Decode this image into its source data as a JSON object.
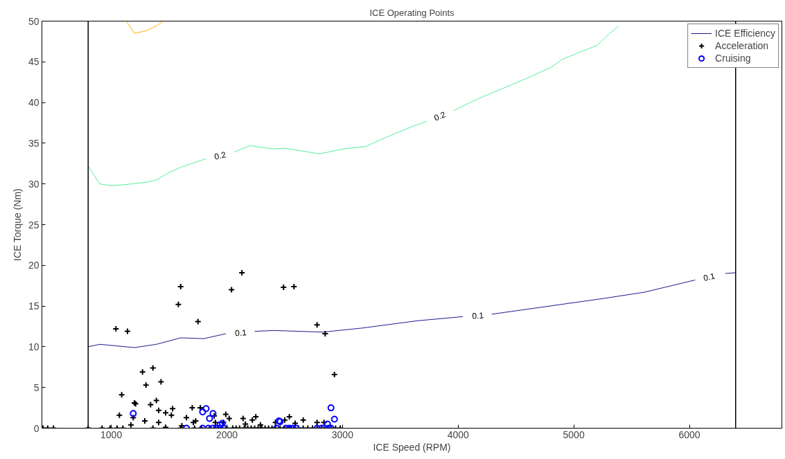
{
  "chart_data": {
    "type": "scatter",
    "title": "ICE Operating Points",
    "xlabel": "ICE Speed (RPM)",
    "ylabel": "ICE Torque (Nm)",
    "xlim": [
      400,
      6800
    ],
    "ylim": [
      0,
      50
    ],
    "xticks": [
      1000,
      2000,
      3000,
      4000,
      5000,
      6000
    ],
    "yticks": [
      0,
      5,
      10,
      15,
      20,
      25,
      30,
      35,
      40,
      45,
      50
    ],
    "grid": false,
    "legend": "top right",
    "series": [
      {
        "name": "ICE Efficiency",
        "type": "line",
        "color": "#1a1a8c",
        "marker": "none",
        "x": [
          800,
          900,
          1200,
          1390,
          1600,
          1800,
          1990,
          2120,
          2240,
          2410,
          2830,
          3170,
          3650,
          4040,
          4170,
          4290,
          5240,
          5610,
          6050,
          6170,
          6310,
          6400
        ],
        "values": [
          10.0,
          10.3,
          9.9,
          10.3,
          11.1,
          11.0,
          11.6,
          null,
          11.9,
          12.0,
          11.8,
          12.3,
          13.2,
          13.7,
          null,
          14.0,
          15.9,
          16.7,
          18.2,
          null,
          19.0,
          19.1
        ]
      },
      {
        "type": "line",
        "color": "#55ee99",
        "marker": "none",
        "x": [
          800,
          900,
          1000,
          1110,
          1300,
          1390,
          1500,
          1610,
          1820,
          1940,
          2060,
          2110,
          2200,
          2400,
          2500,
          2800,
          3010,
          3200,
          3390,
          3610,
          3730,
          3840,
          3960,
          4120,
          4210,
          4380,
          4580,
          4800,
          4900,
          5020,
          5200,
          5310,
          5390
        ],
        "values": [
          32.2,
          30.0,
          29.8,
          29.9,
          30.2,
          30.5,
          31.4,
          32.1,
          33.1,
          null,
          33.9,
          34.2,
          34.7,
          34.3,
          34.4,
          33.7,
          34.3,
          34.6,
          35.8,
          37.1,
          37.7,
          null,
          39.0,
          40.1,
          40.7,
          41.7,
          42.9,
          44.3,
          45.3,
          46.0,
          47.0,
          48.5,
          49.4
        ]
      },
      {
        "type": "line",
        "color": "#ffb300",
        "marker": "none",
        "x": [
          1130,
          1200,
          1300,
          1390,
          1450
        ],
        "values": [
          50.0,
          48.5,
          48.8,
          49.4,
          50.0
        ]
      },
      {
        "name": "Acceleration",
        "color": "#000000",
        "marker": "cross",
        "x": [
          1600,
          1580,
          2130,
          2040,
          2490,
          2580,
          1750,
          1040,
          1140,
          2780,
          2850,
          2930,
          1270,
          1360,
          1300,
          1430,
          1090,
          1200,
          1210,
          1390,
          1340,
          1070,
          1190,
          1170,
          1290,
          1410,
          1410,
          1470,
          1530,
          1520,
          1650,
          1700,
          1710,
          1730,
          1770,
          1890,
          1900,
          1970,
          1990,
          2020,
          2140,
          2160,
          2220,
          2250,
          2290,
          2420,
          2500,
          2540,
          2590,
          2660,
          2780,
          2840,
          1610,
          1470,
          410,
          450,
          500,
          800,
          920,
          990,
          1050,
          1100,
          1360,
          1600,
          1720,
          1780,
          1850,
          1900,
          1950,
          2000,
          2050,
          2080,
          2110,
          2150,
          2180,
          2210,
          2240,
          2270,
          2300,
          2330,
          2360,
          2390,
          2420,
          2460,
          2500,
          2540,
          2580,
          2620,
          2660,
          2700,
          2740,
          2780,
          2820,
          2860,
          2900,
          2940,
          2980
        ],
        "values": [
          17.4,
          15.2,
          19.1,
          17.0,
          17.3,
          17.4,
          13.1,
          12.2,
          11.9,
          12.7,
          11.6,
          6.6,
          6.9,
          7.4,
          5.3,
          5.7,
          4.1,
          3.1,
          3.0,
          3.4,
          2.9,
          1.6,
          1.3,
          0.4,
          0.9,
          2.2,
          0.7,
          1.9,
          2.4,
          1.6,
          1.3,
          2.5,
          0.7,
          0.9,
          2.5,
          1.5,
          0.7,
          0.7,
          1.7,
          1.2,
          1.2,
          0.5,
          1.0,
          1.4,
          0.4,
          0.7,
          1.0,
          1.4,
          0.6,
          1.0,
          0.7,
          0.7,
          0.3,
          0.1,
          0,
          0,
          0,
          0,
          0,
          0,
          0,
          0,
          0,
          0,
          0,
          0,
          0,
          0,
          0,
          0,
          0,
          0,
          0,
          0,
          0,
          0,
          0,
          0,
          0,
          0,
          0,
          0,
          0,
          0,
          0,
          0,
          0,
          0,
          0,
          0,
          0,
          0,
          0,
          0,
          0,
          0,
          0
        ]
      },
      {
        "name": "Cruising",
        "color": "#0000ff",
        "marker": "circle",
        "x": [
          1190,
          1650,
          1790,
          1820,
          1850,
          1880,
          1940,
          1960,
          2450,
          2460,
          2900,
          2930,
          2870,
          1790,
          1840,
          1880,
          1910,
          1940,
          1970,
          2430,
          2510,
          2540,
          2570,
          2600,
          2780,
          2820,
          2880,
          2900
        ],
        "values": [
          1.8,
          0,
          2.0,
          2.4,
          1.2,
          1.8,
          0.4,
          0.6,
          0.9,
          0.8,
          2.5,
          1.1,
          0.5,
          0,
          0,
          0,
          0,
          0,
          0,
          0,
          0,
          0,
          0,
          0,
          0,
          0,
          0,
          0
        ]
      }
    ],
    "ref_lines": [
      {
        "axis": "x",
        "value": 800,
        "color": "#000000"
      },
      {
        "axis": "x",
        "value": 6400,
        "color": "#000000"
      }
    ],
    "annotations": [
      "0.1",
      "0.1",
      "0.1",
      "0.2",
      "0.2"
    ]
  }
}
